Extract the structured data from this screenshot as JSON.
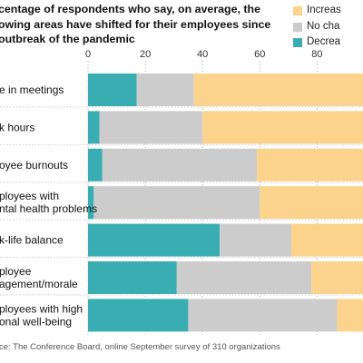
{
  "title_lines": [
    "centage of respondents who say, on average, the",
    "owing areas have shifted for their employees since",
    "outbreak of the pandemic"
  ],
  "source": "ce: The Conference Board, online September survey of 310 organizations",
  "chart_data": {
    "type": "bar",
    "orientation": "horizontal",
    "stacked": true,
    "xlim": [
      0,
      100
    ],
    "x_ticks": [
      "0",
      "20",
      "40",
      "60",
      "80"
    ],
    "grid": true,
    "legend_position": "top-right",
    "category_label_lines": [
      [
        "e in meetings"
      ],
      [
        "k hours"
      ],
      [
        "oyee burnouts"
      ],
      [
        "ployees with",
        "ntal health problems"
      ],
      [
        "k-life balance"
      ],
      [
        "ployee",
        "agement/morale"
      ],
      [
        "ployees with  high",
        "onal well-being"
      ]
    ],
    "series": [
      {
        "name": "Decrea",
        "color": "#3aadb3",
        "values": [
          17,
          4,
          5,
          2,
          46,
          31,
          35
        ]
      },
      {
        "name": "No cha",
        "color": "#cdcccc",
        "values": [
          20,
          36,
          54,
          58,
          25,
          47,
          52
        ]
      },
      {
        "name": "Increas",
        "color": "#fcd38d",
        "values": [
          63,
          60,
          41,
          40,
          29,
          22,
          13
        ]
      }
    ]
  }
}
